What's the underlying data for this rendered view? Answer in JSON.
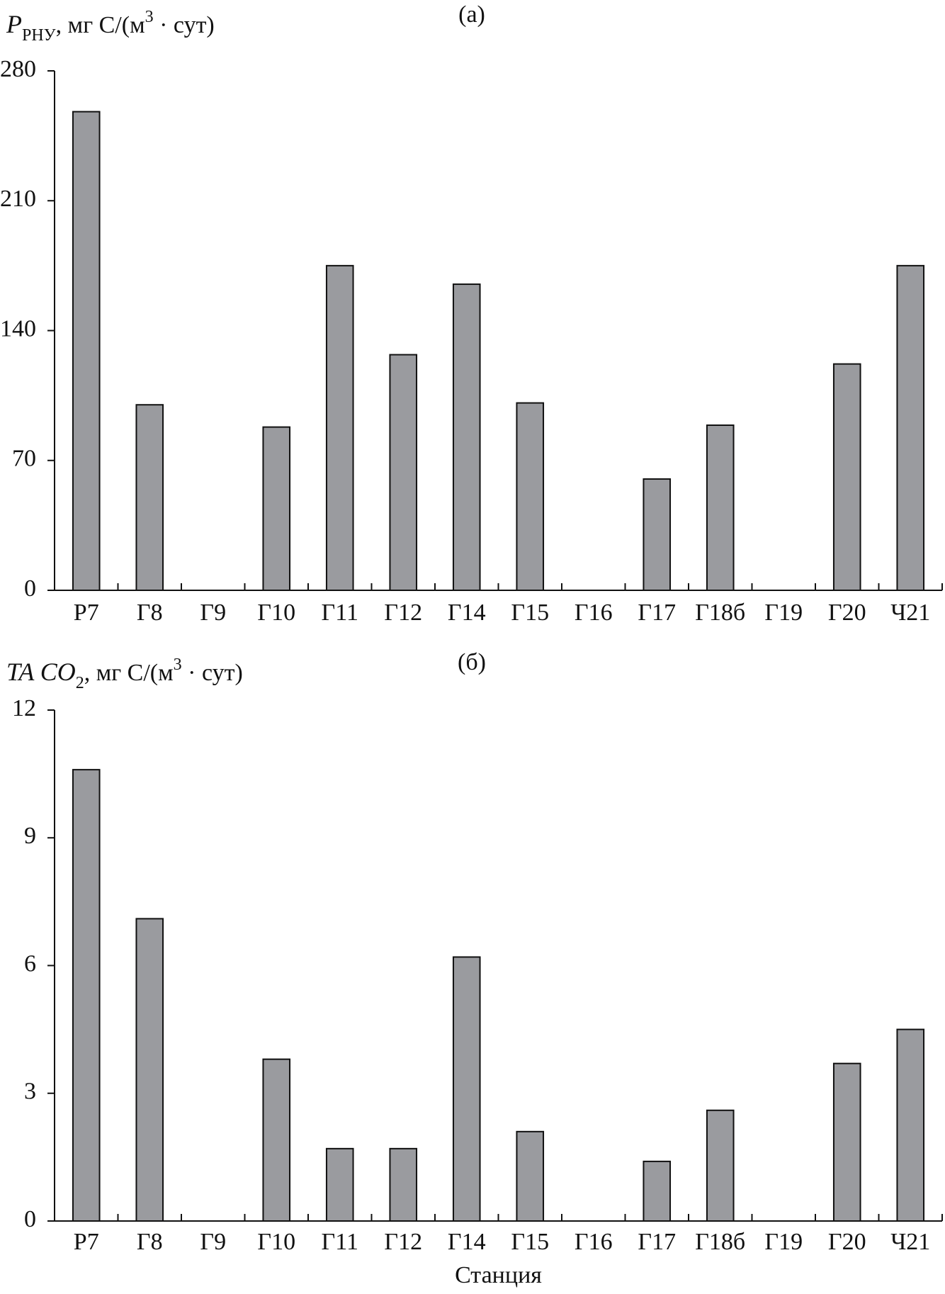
{
  "chart_data": [
    {
      "type": "bar",
      "panel_label": "(а)",
      "y_label": [
        "P",
        "РНУ",
        ", мг C/(м",
        "3",
        " · сут)"
      ],
      "categories": [
        "Р7",
        "Г8",
        "Г9",
        "Г10",
        "Г11",
        "Г12",
        "Г14",
        "Г15",
        "Г16",
        "Г17",
        "Г18б",
        "Г19",
        "Г20",
        "Ч21"
      ],
      "values": [
        258,
        100,
        null,
        88,
        175,
        127,
        165,
        101,
        null,
        60,
        89,
        null,
        122,
        175
      ],
      "color": "#9a9b9f",
      "ylim": [
        0,
        280
      ],
      "yticks": [
        0,
        70,
        140,
        210,
        280
      ],
      "grid": false
    },
    {
      "type": "bar",
      "panel_label": "(б)",
      "y_label": [
        "TA CO",
        "2",
        ", мг C/(м",
        "3",
        " · сут)"
      ],
      "x_label": "Станция",
      "categories": [
        "Р7",
        "Г8",
        "Г9",
        "Г10",
        "Г11",
        "Г12",
        "Г14",
        "Г15",
        "Г16",
        "Г17",
        "Г18б",
        "Г19",
        "Г20",
        "Ч21"
      ],
      "values": [
        10.6,
        7.1,
        null,
        3.8,
        1.7,
        1.7,
        6.2,
        2.1,
        null,
        1.4,
        2.6,
        null,
        3.7,
        4.5
      ],
      "color": "#9a9b9f",
      "ylim": [
        0,
        12
      ],
      "yticks": [
        0,
        3,
        6,
        9,
        12
      ],
      "grid": false
    }
  ]
}
